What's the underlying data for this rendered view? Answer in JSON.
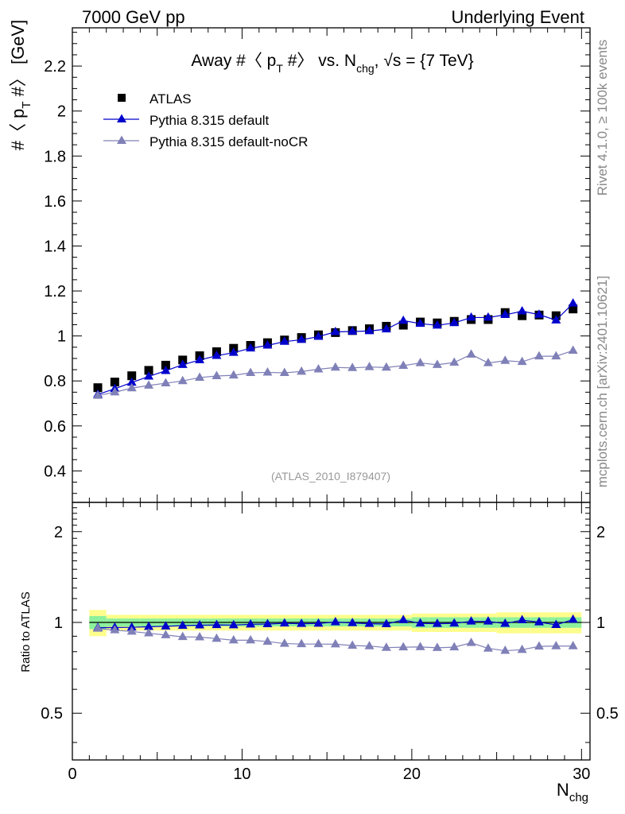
{
  "header": {
    "left": "7000 GeV pp",
    "right": "Underlying Event"
  },
  "side_labels": {
    "rivet": "Rivet 4.1.0, ≥ 100k events",
    "mcplots": "mcplots.cern.ch [arXiv:2401.10621]"
  },
  "chart_data": [
    {
      "type": "scatter",
      "panel": "main",
      "title": "Away #〈 p_T #〉 vs. N_chg, √s = {7 TeV}",
      "title_parts": {
        "a": "Away #〈 p",
        "sub1": "T",
        "b": " #〉 vs. N",
        "sub2": "chg",
        "c": ", √s = {7 TeV}"
      },
      "ylabel": "#〈 p_T #〉 [GeV]",
      "ylabel_parts": {
        "a": "#〈 p",
        "sub": "T",
        "b": " #〉 [GeV]"
      },
      "xlabel": "N_chg",
      "xlim": [
        0,
        30.5
      ],
      "ylim": [
        0.26,
        2.37
      ],
      "yticks": [
        0.4,
        0.6,
        0.8,
        1,
        1.2,
        1.4,
        1.6,
        1.8,
        2,
        2.2
      ],
      "ytick_labels": [
        "0.4",
        "0.6",
        "0.8",
        "1",
        "1.2",
        "1.4",
        "1.6",
        "1.8",
        "2",
        "2.2"
      ],
      "watermark": "(ATLAS_2010_I879407)",
      "legend": {
        "position": "top-left",
        "entries": [
          "ATLAS",
          "Pythia 8.315 default",
          "Pythia 8.315 default-noCR"
        ]
      },
      "x": [
        1.5,
        2.5,
        3.5,
        4.5,
        5.5,
        6.5,
        7.5,
        8.5,
        9.5,
        10.5,
        11.5,
        12.5,
        13.5,
        14.5,
        15.5,
        16.5,
        17.5,
        18.5,
        19.5,
        20.5,
        21.5,
        22.5,
        23.5,
        24.5,
        25.5,
        26.5,
        27.5,
        28.5,
        29.5
      ],
      "series": [
        {
          "name": "ATLAS",
          "color": "#000000",
          "marker": "square",
          "values": [
            0.77,
            0.795,
            0.823,
            0.847,
            0.87,
            0.893,
            0.912,
            0.93,
            0.945,
            0.958,
            0.97,
            0.982,
            0.993,
            1.005,
            1.015,
            1.024,
            1.032,
            1.043,
            1.048,
            1.062,
            1.058,
            1.065,
            1.073,
            1.073,
            1.104,
            1.09,
            1.093,
            1.09,
            1.12
          ]
        },
        {
          "name": "Pythia 8.315 default",
          "color": "#0000cc",
          "marker": "triangle",
          "values": [
            0.74,
            0.765,
            0.793,
            0.82,
            0.845,
            0.872,
            0.893,
            0.912,
            0.926,
            0.945,
            0.958,
            0.975,
            0.983,
            0.997,
            1.018,
            1.02,
            1.022,
            1.03,
            1.068,
            1.055,
            1.047,
            1.058,
            1.082,
            1.082,
            1.094,
            1.11,
            1.095,
            1.07,
            1.145
          ]
        },
        {
          "name": "Pythia 8.315 default-noCR",
          "color": "#8080b8",
          "marker": "triangle",
          "values": [
            0.735,
            0.75,
            0.768,
            0.78,
            0.79,
            0.8,
            0.815,
            0.822,
            0.825,
            0.836,
            0.838,
            0.836,
            0.842,
            0.852,
            0.86,
            0.858,
            0.862,
            0.86,
            0.868,
            0.88,
            0.872,
            0.882,
            0.918,
            0.88,
            0.89,
            0.885,
            0.91,
            0.91,
            0.935
          ]
        }
      ]
    },
    {
      "type": "scatter",
      "panel": "ratio",
      "ylabel": "Ratio to ATLAS",
      "xlabel": "N_chg",
      "xlabel_parts": {
        "a": "N",
        "sub": "chg"
      },
      "xlim": [
        0,
        30.5
      ],
      "ylim": [
        0.35,
        2.5
      ],
      "yscale": "log",
      "yticks": [
        0.5,
        1,
        2
      ],
      "ytick_labels": [
        "0.5",
        "1",
        "2"
      ],
      "xticks": [
        0,
        10,
        20,
        30
      ],
      "xtick_labels": [
        "0",
        "10",
        "20",
        "30"
      ],
      "x": [
        1.5,
        2.5,
        3.5,
        4.5,
        5.5,
        6.5,
        7.5,
        8.5,
        9.5,
        10.5,
        11.5,
        12.5,
        13.5,
        14.5,
        15.5,
        16.5,
        17.5,
        18.5,
        19.5,
        20.5,
        21.5,
        22.5,
        23.5,
        24.5,
        25.5,
        26.5,
        27.5,
        28.5,
        29.5
      ],
      "band_inner": [
        0.05,
        0.03,
        0.03,
        0.03,
        0.03,
        0.03,
        0.03,
        0.03,
        0.03,
        0.03,
        0.03,
        0.03,
        0.03,
        0.03,
        0.03,
        0.03,
        0.03,
        0.03,
        0.03,
        0.04,
        0.04,
        0.04,
        0.04,
        0.04,
        0.04,
        0.04,
        0.04,
        0.04,
        0.04
      ],
      "band_outer": [
        0.1,
        0.06,
        0.06,
        0.06,
        0.06,
        0.06,
        0.06,
        0.06,
        0.06,
        0.06,
        0.06,
        0.06,
        0.06,
        0.06,
        0.06,
        0.06,
        0.06,
        0.06,
        0.06,
        0.07,
        0.07,
        0.07,
        0.07,
        0.07,
        0.08,
        0.08,
        0.08,
        0.08,
        0.08
      ],
      "series": [
        {
          "name": "Pythia 8.315 default",
          "color": "#0000cc",
          "marker": "triangle",
          "values": [
            0.96,
            0.962,
            0.963,
            0.968,
            0.971,
            0.976,
            0.979,
            0.981,
            0.98,
            0.986,
            0.988,
            0.993,
            0.99,
            0.992,
            1.003,
            0.996,
            0.99,
            0.988,
            1.019,
            0.993,
            0.99,
            0.993,
            1.008,
            1.008,
            0.991,
            1.018,
            1.002,
            0.982,
            1.022
          ]
        },
        {
          "name": "Pythia 8.315 default-noCR",
          "color": "#8080b8",
          "marker": "triangle",
          "values": [
            0.955,
            0.943,
            0.933,
            0.921,
            0.908,
            0.896,
            0.894,
            0.884,
            0.873,
            0.873,
            0.864,
            0.851,
            0.848,
            0.848,
            0.847,
            0.838,
            0.835,
            0.825,
            0.828,
            0.829,
            0.824,
            0.828,
            0.856,
            0.82,
            0.806,
            0.812,
            0.833,
            0.835,
            0.835
          ]
        }
      ]
    }
  ]
}
